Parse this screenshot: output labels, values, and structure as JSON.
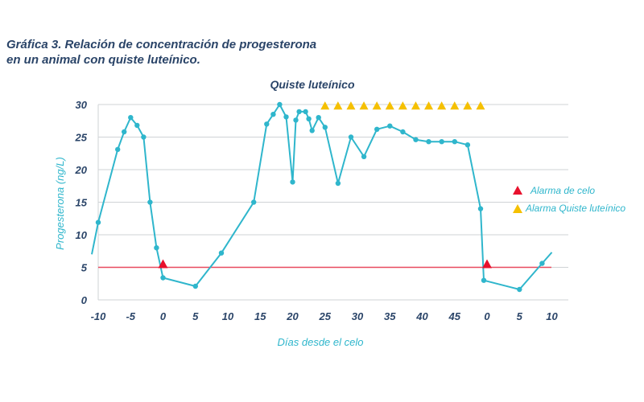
{
  "figure": {
    "title_line1": "Gráfica 3. Relación de concentración de progesterona",
    "title_line2": "en un animal con quiste luteínico."
  },
  "chart_data": {
    "type": "line",
    "title": "Quiste luteínico",
    "xlabel": "Días desde el celo",
    "ylabel": "Progesterona (ng/L)",
    "ylim": [
      0,
      30
    ],
    "yticks": [
      0,
      5,
      10,
      15,
      20,
      25,
      30
    ],
    "xticks": [
      "-10",
      "-5",
      "0",
      "5",
      "10",
      "15",
      "20",
      "25",
      "30",
      "35",
      "40",
      "45",
      "0",
      "5",
      "10"
    ],
    "grid": true,
    "threshold": 5,
    "colors": {
      "line": "#2fb6cc",
      "threshold": "#e84a5f",
      "alarm_celo": "#e8112d",
      "alarm_quiste": "#f5c000",
      "text": "#2a4468",
      "grid": "#cfd3d6"
    },
    "series": [
      {
        "x": [
          -11,
          -10,
          -7,
          -6,
          -5,
          -4,
          -3,
          -2,
          -1,
          0,
          5,
          9,
          14,
          16,
          17,
          18,
          19,
          20,
          20.5,
          21,
          22,
          22.5,
          23,
          24,
          25,
          27,
          29,
          31,
          33,
          35,
          37,
          39,
          41,
          43,
          45,
          47,
          49,
          49.5,
          55,
          58.5,
          60
        ],
        "y": [
          7,
          11.9,
          23.1,
          25.8,
          28,
          26.8,
          25,
          15,
          8,
          3.4,
          2.1,
          7.2,
          15,
          27,
          28.5,
          30,
          28.1,
          18.1,
          27.6,
          28.9,
          28.9,
          27.8,
          26,
          28,
          26.5,
          17.9,
          25,
          22,
          26.2,
          26.7,
          25.8,
          24.6,
          24.3,
          24.3,
          24.3,
          23.8,
          14,
          3,
          1.6,
          5.6,
          7.3
        ]
      }
    ],
    "alarms_celo": {
      "x": [
        0,
        50
      ],
      "y": [
        5.5,
        5.5
      ]
    },
    "alarms_quiste": {
      "x": [
        25,
        27,
        29,
        31,
        33,
        35,
        37,
        39,
        41,
        43,
        45,
        47,
        49
      ],
      "y": [
        29.8,
        29.8,
        29.8,
        29.8,
        29.8,
        29.8,
        29.8,
        29.8,
        29.8,
        29.8,
        29.8,
        29.8,
        29.8
      ]
    },
    "legend": {
      "placement": "right",
      "entries": [
        "Alarma de celo",
        "Alarma Quiste luteínico"
      ]
    }
  }
}
